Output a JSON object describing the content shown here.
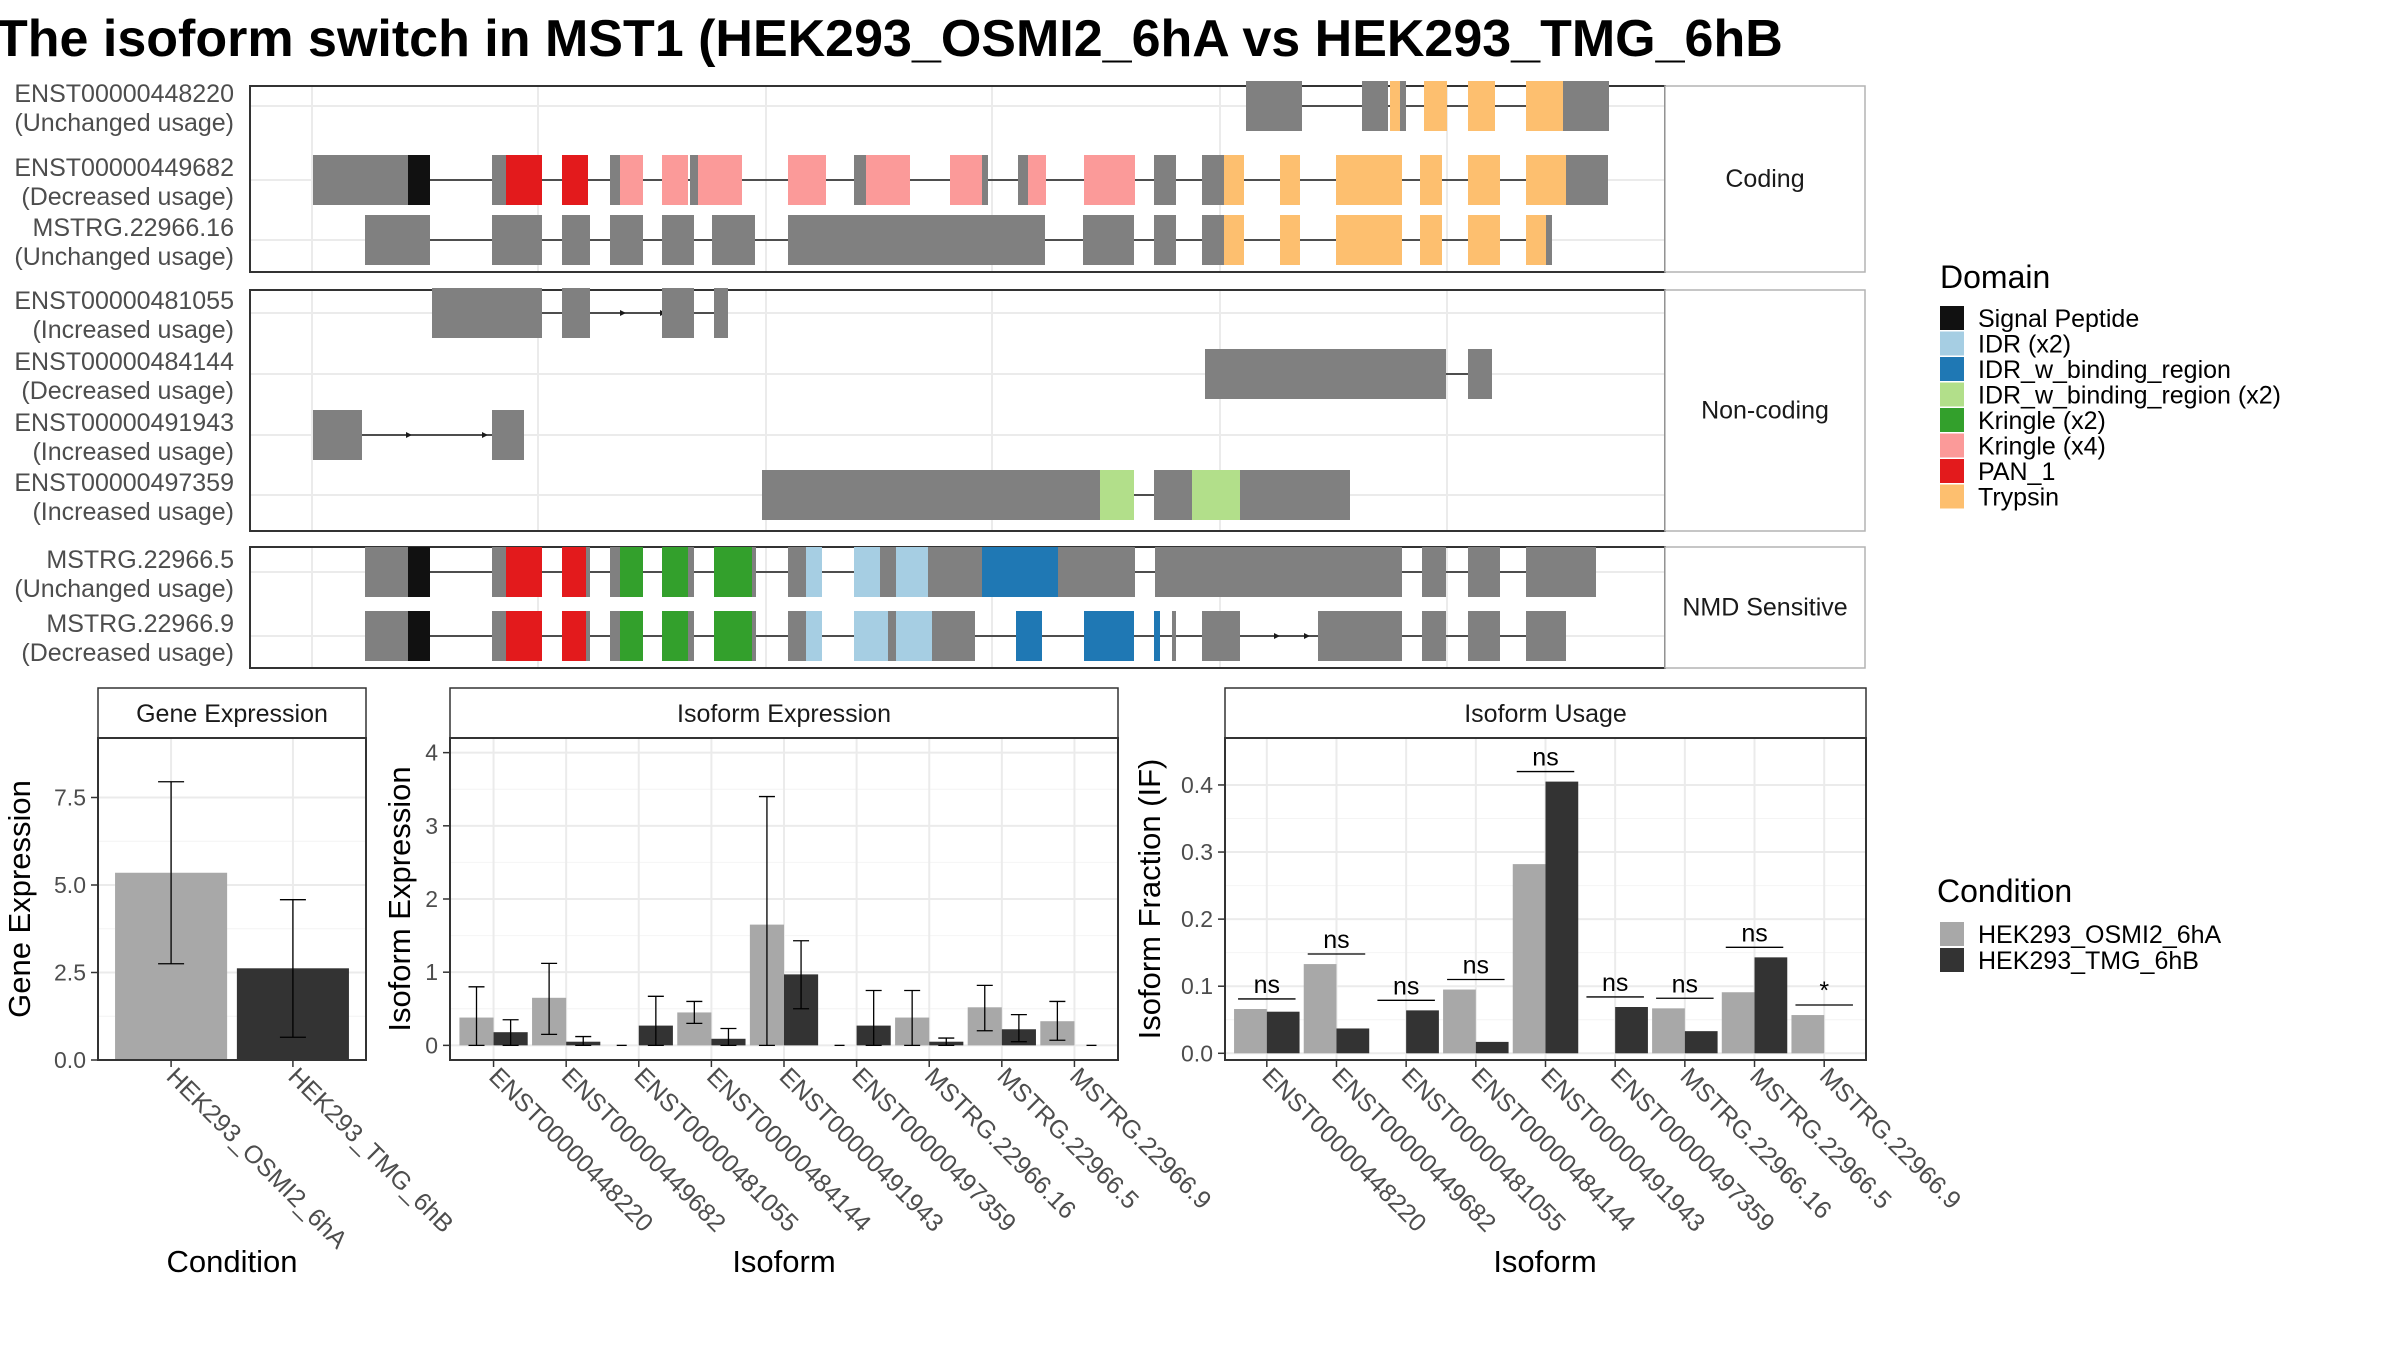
{
  "title": "The isoform switch in MST1 (HEK293_OSMI2_6hA vs HEK293_TMG_6hB",
  "transcripts": {
    "facets": [
      {
        "label": "Coding",
        "rows": [
          {
            "id": "ENST00000448220",
            "usage": "(Unchanged usage)"
          },
          {
            "id": "ENST00000449682",
            "usage": "(Decreased usage)"
          },
          {
            "id": "MSTRG.22966.16",
            "usage": "(Unchanged usage)"
          }
        ]
      },
      {
        "label": "Non-coding",
        "rows": [
          {
            "id": "ENST00000481055",
            "usage": "(Increased usage)"
          },
          {
            "id": "ENST00000484144",
            "usage": "(Decreased usage)"
          },
          {
            "id": "ENST00000491943",
            "usage": "(Increased usage)"
          },
          {
            "id": "ENST00000497359",
            "usage": "(Increased usage)"
          }
        ]
      },
      {
        "label": "NMD Sensitive",
        "rows": [
          {
            "id": "MSTRG.22966.5",
            "usage": "(Unchanged usage)"
          },
          {
            "id": "MSTRG.22966.9",
            "usage": "(Decreased usage)"
          }
        ]
      }
    ]
  },
  "domain_legend": {
    "title": "Domain",
    "items": [
      {
        "label": "Signal Peptide",
        "color": "#111111"
      },
      {
        "label": "IDR (x2)",
        "color": "#a6cee3"
      },
      {
        "label": "IDR_w_binding_region",
        "color": "#1f78b4"
      },
      {
        "label": "IDR_w_binding_region (x2)",
        "color": "#b2df8a"
      },
      {
        "label": "Kringle (x2)",
        "color": "#33a02c"
      },
      {
        "label": "Kringle (x4)",
        "color": "#fb9a99"
      },
      {
        "label": "PAN_1",
        "color": "#e31a1c"
      },
      {
        "label": "Trypsin",
        "color": "#fdbf6f"
      }
    ]
  },
  "condition_legend": {
    "title": "Condition",
    "items": [
      {
        "label": "HEK293_OSMI2_6hA",
        "color": "#a8a8a8"
      },
      {
        "label": "HEK293_TMG_6hB",
        "color": "#333333"
      }
    ]
  },
  "chart_data": [
    {
      "type": "bar",
      "title": "Gene Expression",
      "xlabel": "Condition",
      "ylabel": "Gene Expression",
      "ylim": [
        0,
        9.2
      ],
      "yticks": [
        "0.0",
        "2.5",
        "5.0",
        "7.5"
      ],
      "categories": [
        "HEK293_OSMI2_6hA",
        "HEK293_TMG_6hB"
      ],
      "values": [
        5.35,
        2.62
      ],
      "error_low": [
        2.75,
        0.65
      ],
      "error_high": [
        7.95,
        4.58
      ]
    },
    {
      "type": "bar",
      "title": "Isoform Expression",
      "xlabel": "Isoform",
      "ylabel": "Isoform Expression",
      "ylim": [
        -0.2,
        4.2
      ],
      "yticks": [
        "0",
        "1",
        "2",
        "3",
        "4"
      ],
      "categories": [
        "ENST00000448220",
        "ENST00000449682",
        "ENST00000481055",
        "ENST00000484144",
        "ENST00000491943",
        "ENST00000497359",
        "MSTRG.22966.16",
        "MSTRG.22966.5",
        "MSTRG.22966.9"
      ],
      "series": [
        {
          "name": "HEK293_OSMI2_6hA",
          "values": [
            0.38,
            0.65,
            0.0,
            0.45,
            1.65,
            0.0,
            0.38,
            0.52,
            0.33
          ],
          "error_low": [
            0.0,
            0.15,
            0.0,
            0.3,
            0.0,
            0.0,
            0.0,
            0.2,
            0.07
          ],
          "error_high": [
            0.8,
            1.12,
            0.0,
            0.6,
            3.4,
            0.0,
            0.75,
            0.82,
            0.6
          ]
        },
        {
          "name": "HEK293_TMG_6hB",
          "values": [
            0.18,
            0.05,
            0.27,
            0.09,
            0.97,
            0.27,
            0.05,
            0.22,
            0.0
          ],
          "error_low": [
            0.0,
            0.0,
            0.0,
            0.0,
            0.5,
            0.0,
            0.0,
            0.05,
            0.0
          ],
          "error_high": [
            0.35,
            0.12,
            0.67,
            0.23,
            1.43,
            0.75,
            0.1,
            0.42,
            0.0
          ]
        }
      ]
    },
    {
      "type": "bar",
      "title": "Isoform Usage",
      "xlabel": "Isoform",
      "ylabel": "Isoform Fraction (IF)",
      "ylim": [
        -0.01,
        0.47
      ],
      "yticks": [
        "0.0",
        "0.1",
        "0.2",
        "0.3",
        "0.4"
      ],
      "categories": [
        "ENST00000448220",
        "ENST00000449682",
        "ENST00000481055",
        "ENST00000484144",
        "ENST00000491943",
        "ENST00000497359",
        "MSTRG.22966.16",
        "MSTRG.22966.5",
        "MSTRG.22966.9"
      ],
      "series": [
        {
          "name": "HEK293_OSMI2_6hA",
          "values": [
            0.066,
            0.133,
            0.0,
            0.095,
            0.282,
            0.0,
            0.067,
            0.091,
            0.057
          ]
        },
        {
          "name": "HEK293_TMG_6hB",
          "values": [
            0.062,
            0.037,
            0.064,
            0.017,
            0.405,
            0.069,
            0.033,
            0.143,
            0.0
          ]
        }
      ],
      "significance": [
        "ns",
        "ns",
        "ns",
        "ns",
        "ns",
        "ns",
        "ns",
        "ns",
        "*"
      ]
    }
  ]
}
